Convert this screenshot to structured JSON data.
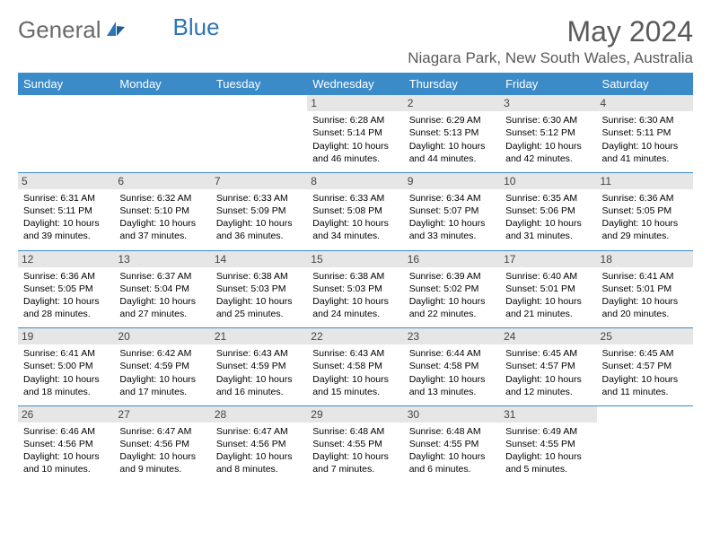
{
  "brand": {
    "part1": "General",
    "part2": "Blue"
  },
  "title": "May 2024",
  "location": "Niagara Park, New South Wales, Australia",
  "colors": {
    "header_bg": "#3b8bc9",
    "header_text": "#ffffff",
    "daynum_bg": "#e6e6e6",
    "border": "#3b8bc9",
    "title_color": "#5a5a5a",
    "logo_gray": "#6a6a6a",
    "logo_blue": "#2e75b6"
  },
  "weekdays": [
    "Sunday",
    "Monday",
    "Tuesday",
    "Wednesday",
    "Thursday",
    "Friday",
    "Saturday"
  ],
  "weeks": [
    [
      null,
      null,
      null,
      {
        "n": "1",
        "sr": "Sunrise: 6:28 AM",
        "ss": "Sunset: 5:14 PM",
        "d1": "Daylight: 10 hours",
        "d2": "and 46 minutes."
      },
      {
        "n": "2",
        "sr": "Sunrise: 6:29 AM",
        "ss": "Sunset: 5:13 PM",
        "d1": "Daylight: 10 hours",
        "d2": "and 44 minutes."
      },
      {
        "n": "3",
        "sr": "Sunrise: 6:30 AM",
        "ss": "Sunset: 5:12 PM",
        "d1": "Daylight: 10 hours",
        "d2": "and 42 minutes."
      },
      {
        "n": "4",
        "sr": "Sunrise: 6:30 AM",
        "ss": "Sunset: 5:11 PM",
        "d1": "Daylight: 10 hours",
        "d2": "and 41 minutes."
      }
    ],
    [
      {
        "n": "5",
        "sr": "Sunrise: 6:31 AM",
        "ss": "Sunset: 5:11 PM",
        "d1": "Daylight: 10 hours",
        "d2": "and 39 minutes."
      },
      {
        "n": "6",
        "sr": "Sunrise: 6:32 AM",
        "ss": "Sunset: 5:10 PM",
        "d1": "Daylight: 10 hours",
        "d2": "and 37 minutes."
      },
      {
        "n": "7",
        "sr": "Sunrise: 6:33 AM",
        "ss": "Sunset: 5:09 PM",
        "d1": "Daylight: 10 hours",
        "d2": "and 36 minutes."
      },
      {
        "n": "8",
        "sr": "Sunrise: 6:33 AM",
        "ss": "Sunset: 5:08 PM",
        "d1": "Daylight: 10 hours",
        "d2": "and 34 minutes."
      },
      {
        "n": "9",
        "sr": "Sunrise: 6:34 AM",
        "ss": "Sunset: 5:07 PM",
        "d1": "Daylight: 10 hours",
        "d2": "and 33 minutes."
      },
      {
        "n": "10",
        "sr": "Sunrise: 6:35 AM",
        "ss": "Sunset: 5:06 PM",
        "d1": "Daylight: 10 hours",
        "d2": "and 31 minutes."
      },
      {
        "n": "11",
        "sr": "Sunrise: 6:36 AM",
        "ss": "Sunset: 5:05 PM",
        "d1": "Daylight: 10 hours",
        "d2": "and 29 minutes."
      }
    ],
    [
      {
        "n": "12",
        "sr": "Sunrise: 6:36 AM",
        "ss": "Sunset: 5:05 PM",
        "d1": "Daylight: 10 hours",
        "d2": "and 28 minutes."
      },
      {
        "n": "13",
        "sr": "Sunrise: 6:37 AM",
        "ss": "Sunset: 5:04 PM",
        "d1": "Daylight: 10 hours",
        "d2": "and 27 minutes."
      },
      {
        "n": "14",
        "sr": "Sunrise: 6:38 AM",
        "ss": "Sunset: 5:03 PM",
        "d1": "Daylight: 10 hours",
        "d2": "and 25 minutes."
      },
      {
        "n": "15",
        "sr": "Sunrise: 6:38 AM",
        "ss": "Sunset: 5:03 PM",
        "d1": "Daylight: 10 hours",
        "d2": "and 24 minutes."
      },
      {
        "n": "16",
        "sr": "Sunrise: 6:39 AM",
        "ss": "Sunset: 5:02 PM",
        "d1": "Daylight: 10 hours",
        "d2": "and 22 minutes."
      },
      {
        "n": "17",
        "sr": "Sunrise: 6:40 AM",
        "ss": "Sunset: 5:01 PM",
        "d1": "Daylight: 10 hours",
        "d2": "and 21 minutes."
      },
      {
        "n": "18",
        "sr": "Sunrise: 6:41 AM",
        "ss": "Sunset: 5:01 PM",
        "d1": "Daylight: 10 hours",
        "d2": "and 20 minutes."
      }
    ],
    [
      {
        "n": "19",
        "sr": "Sunrise: 6:41 AM",
        "ss": "Sunset: 5:00 PM",
        "d1": "Daylight: 10 hours",
        "d2": "and 18 minutes."
      },
      {
        "n": "20",
        "sr": "Sunrise: 6:42 AM",
        "ss": "Sunset: 4:59 PM",
        "d1": "Daylight: 10 hours",
        "d2": "and 17 minutes."
      },
      {
        "n": "21",
        "sr": "Sunrise: 6:43 AM",
        "ss": "Sunset: 4:59 PM",
        "d1": "Daylight: 10 hours",
        "d2": "and 16 minutes."
      },
      {
        "n": "22",
        "sr": "Sunrise: 6:43 AM",
        "ss": "Sunset: 4:58 PM",
        "d1": "Daylight: 10 hours",
        "d2": "and 15 minutes."
      },
      {
        "n": "23",
        "sr": "Sunrise: 6:44 AM",
        "ss": "Sunset: 4:58 PM",
        "d1": "Daylight: 10 hours",
        "d2": "and 13 minutes."
      },
      {
        "n": "24",
        "sr": "Sunrise: 6:45 AM",
        "ss": "Sunset: 4:57 PM",
        "d1": "Daylight: 10 hours",
        "d2": "and 12 minutes."
      },
      {
        "n": "25",
        "sr": "Sunrise: 6:45 AM",
        "ss": "Sunset: 4:57 PM",
        "d1": "Daylight: 10 hours",
        "d2": "and 11 minutes."
      }
    ],
    [
      {
        "n": "26",
        "sr": "Sunrise: 6:46 AM",
        "ss": "Sunset: 4:56 PM",
        "d1": "Daylight: 10 hours",
        "d2": "and 10 minutes."
      },
      {
        "n": "27",
        "sr": "Sunrise: 6:47 AM",
        "ss": "Sunset: 4:56 PM",
        "d1": "Daylight: 10 hours",
        "d2": "and 9 minutes."
      },
      {
        "n": "28",
        "sr": "Sunrise: 6:47 AM",
        "ss": "Sunset: 4:56 PM",
        "d1": "Daylight: 10 hours",
        "d2": "and 8 minutes."
      },
      {
        "n": "29",
        "sr": "Sunrise: 6:48 AM",
        "ss": "Sunset: 4:55 PM",
        "d1": "Daylight: 10 hours",
        "d2": "and 7 minutes."
      },
      {
        "n": "30",
        "sr": "Sunrise: 6:48 AM",
        "ss": "Sunset: 4:55 PM",
        "d1": "Daylight: 10 hours",
        "d2": "and 6 minutes."
      },
      {
        "n": "31",
        "sr": "Sunrise: 6:49 AM",
        "ss": "Sunset: 4:55 PM",
        "d1": "Daylight: 10 hours",
        "d2": "and 5 minutes."
      },
      null
    ]
  ]
}
